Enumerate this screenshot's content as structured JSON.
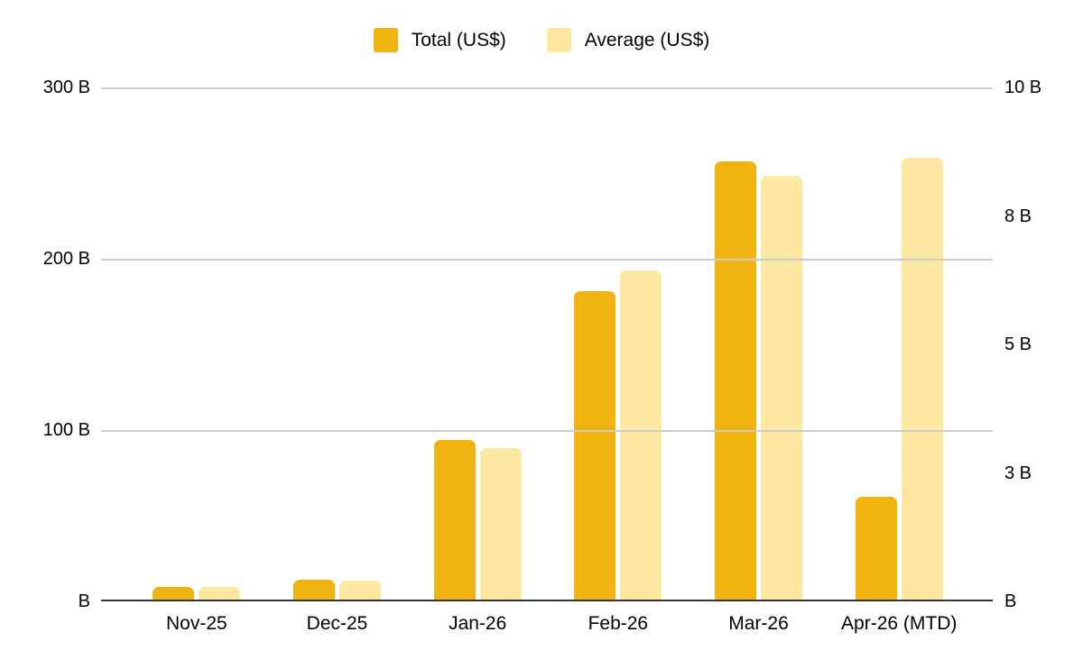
{
  "legend": {
    "items": [
      {
        "label": "Total (US$)",
        "color": "#F0B410"
      },
      {
        "label": "Average (US$)",
        "color": "#FCE8A0"
      }
    ]
  },
  "chart_data": {
    "type": "bar",
    "title": "",
    "categories": [
      "Nov-25",
      "Dec-25",
      "Jan-26",
      "Feb-26",
      "Mar-26",
      "Apr-26 (MTD)"
    ],
    "series": [
      {
        "name": "Total (US$)",
        "axis": "left",
        "color": "#F0B410",
        "values": [
          7.4,
          11.5,
          93,
          180,
          256,
          60
        ]
      },
      {
        "name": "Average (US$)",
        "axis": "right",
        "color": "#FCE8A0",
        "values": [
          0.25,
          0.36,
          2.95,
          6.4,
          8.25,
          8.6
        ]
      }
    ],
    "left_axis": {
      "unit": "US$ B",
      "min": 0,
      "max": 300,
      "ticks": [
        {
          "label": "B",
          "value": 0
        },
        {
          "label": "100 B",
          "value": 100
        },
        {
          "label": "200 B",
          "value": 200
        },
        {
          "label": "300 B",
          "value": 300
        }
      ]
    },
    "right_axis": {
      "unit": "US$ B",
      "min": 0,
      "max": 10,
      "ticks": [
        {
          "label": "B",
          "value": 0
        },
        {
          "label": "3 B",
          "value": 2.5
        },
        {
          "label": "5 B",
          "value": 5
        },
        {
          "label": "8 B",
          "value": 7.5
        },
        {
          "label": "10 B",
          "value": 10
        }
      ]
    },
    "grid": true,
    "legend_position": "top",
    "colors": {
      "gridline": "#cccccc",
      "axis_line": "#333333",
      "text": "#000000"
    }
  }
}
